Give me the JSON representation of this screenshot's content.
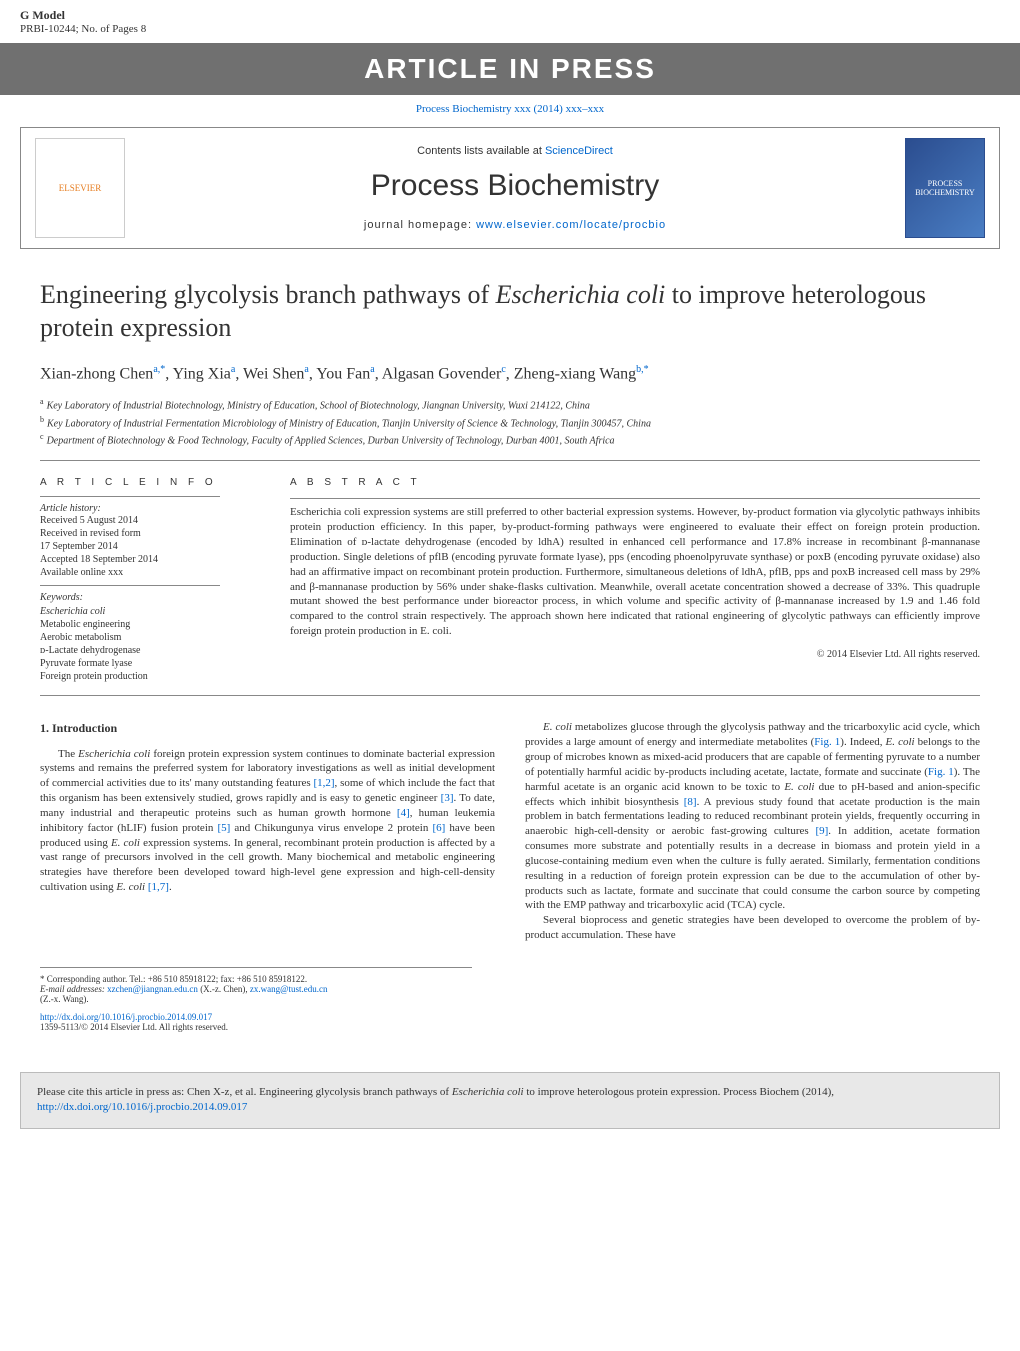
{
  "gmodel": {
    "line1": "G Model",
    "line2": "PRBI-10244;   No. of Pages 8"
  },
  "pressBanner": "ARTICLE IN PRESS",
  "journalRef": {
    "text": "Process Biochemistry xxx (2014) xxx–xxx"
  },
  "headerBox": {
    "elsevierLabel": "ELSEVIER",
    "contentsLine": "Contents lists available at ",
    "contentsLinkText": "ScienceDirect",
    "journalTitle": "Process Biochemistry",
    "homepageLabel": "journal homepage: ",
    "homepageLink": "www.elsevier.com/locate/procbio",
    "coverText": "PROCESS BIOCHEMISTRY"
  },
  "article": {
    "title": "Engineering glycolysis branch pathways of <i>Escherichia coli</i> to improve heterologous protein expression",
    "authorsHtml": "Xian-zhong Chen<span class='sup'>a,*</span>, Ying Xia<span class='sup'>a</span>, Wei Shen<span class='sup'>a</span>, You Fan<span class='sup'>a</span>, Algasan Govender<span class='sup'>c</span>, Zheng-xiang Wang<span class='sup'>b,*</span>",
    "affiliations": [
      {
        "sup": "a",
        "text": "Key Laboratory of Industrial Biotechnology, Ministry of Education, School of Biotechnology, Jiangnan University, Wuxi 214122, China"
      },
      {
        "sup": "b",
        "text": "Key Laboratory of Industrial Fermentation Microbiology of Ministry of Education, Tianjin University of Science & Technology, Tianjin 300457, China"
      },
      {
        "sup": "c",
        "text": "Department of Biotechnology & Food Technology, Faculty of Applied Sciences, Durban University of Technology, Durban 4001, South Africa"
      }
    ]
  },
  "info": {
    "heading": "a r t i c l e   i n f o",
    "historyLabel": "Article history:",
    "history": [
      "Received 5 August 2014",
      "Received in revised form",
      "17 September 2014",
      "Accepted 18 September 2014",
      "Available online xxx"
    ],
    "keywordsLabel": "Keywords:",
    "keywords": [
      "Escherichia coli",
      "Metabolic engineering",
      "Aerobic metabolism",
      "ᴅ-Lactate dehydrogenase",
      "Pyruvate formate lyase",
      "Foreign protein production"
    ]
  },
  "abstract": {
    "heading": "a b s t r a c t",
    "text": "Escherichia coli expression systems are still preferred to other bacterial expression systems. However, by-product formation via glycolytic pathways inhibits protein production efficiency. In this paper, by-product-forming pathways were engineered to evaluate their effect on foreign protein production. Elimination of ᴅ-lactate dehydrogenase (encoded by ldhA) resulted in enhanced cell performance and 17.8% increase in recombinant β-mannanase production. Single deletions of pflB (encoding pyruvate formate lyase), pps (encoding phoenolpyruvate synthase) or poxB (encoding pyruvate oxidase) also had an affirmative impact on recombinant protein production. Furthermore, simultaneous deletions of ldhA, pflB, pps and poxB increased cell mass by 29% and β-mannanase production by 56% under shake-flasks cultivation. Meanwhile, overall acetate concentration showed a decrease of 33%. This quadruple mutant showed the best performance under bioreactor process, in which volume and specific activity of β-mannanase increased by 1.9 and 1.46 fold compared to the control strain respectively. The approach shown here indicated that rational engineering of glycolytic pathways can efficiently improve foreign protein production in E. coli.",
    "copyright": "© 2014 Elsevier Ltd. All rights reserved."
  },
  "intro": {
    "heading": "1.  Introduction",
    "para1Html": "The <i>Escherichia coli</i> foreign protein expression system continues to dominate bacterial expression systems and remains the preferred system for laboratory investigations as well as initial development of commercial activities due to its' many outstanding features <span class='ref-link'>[1,2]</span>, some of which include the fact that this organism has been extensively studied, grows rapidly and is easy to genetic engineer <span class='ref-link'>[3]</span>. To date, many industrial and therapeutic proteins such as human growth hormone <span class='ref-link'>[4]</span>, human leukemia inhibitory factor (hLIF) fusion protein <span class='ref-link'>[5]</span> and Chikungunya virus envelope 2 protein <span class='ref-link'>[6]</span> have been produced using <i>E. coli</i> expression systems. In general, recombinant protein production is affected by a vast range of precursors involved in the cell growth. Many biochemical and metabolic engineering strategies have therefore been developed toward high-level gene expression and high-cell-density cultivation using <i>E. coli</i> <span class='ref-link'>[1,7]</span>.",
    "para2Html": "<i>E. coli</i> metabolizes glucose through the glycolysis pathway and the tricarboxylic acid cycle, which provides a large amount of energy and intermediate metabolites (<span class='fig-link'>Fig. 1</span>). Indeed, <i>E. coli</i> belongs to the group of microbes known as mixed-acid producers that are capable of fermenting pyruvate to a number of potentially harmful acidic by-products including acetate, lactate, formate and succinate (<span class='fig-link'>Fig. 1</span>). The harmful acetate is an organic acid known to be toxic to <i>E. coli</i> due to pH-based and anion-specific effects which inhibit biosynthesis <span class='ref-link'>[8]</span>. A previous study found that acetate production is the main problem in batch fermentations leading to reduced recombinant protein yields, frequently occurring in anaerobic high-cell-density or aerobic fast-growing cultures <span class='ref-link'>[9]</span>. In addition, acetate formation consumes more substrate and potentially results in a decrease in biomass and protein yield in a glucose-containing medium even when the culture is fully aerated. Similarly, fermentation conditions resulting in a reduction of foreign protein expression can be due to the accumulation of other by-products such as lactate, formate and succinate that could consume the carbon source by competing with the EMP pathway and tricarboxylic acid (TCA) cycle.",
    "para3Html": "Several bioprocess and genetic strategies have been developed to overcome the problem of by-product accumulation. These have"
  },
  "footnote": {
    "corrLine": "* Corresponding author. Tel.: +86 510 85918122; fax: +86 510 85918122.",
    "emailLabel": "E-mail addresses: ",
    "email1": "xzchen@jiangnan.edu.cn",
    "email1Name": " (X.-z. Chen), ",
    "email2": "zx.wang@tust.edu.cn",
    "email2Name": "(Z.-x. Wang)."
  },
  "doi": {
    "link": "http://dx.doi.org/10.1016/j.procbio.2014.09.017",
    "issn": "1359-5113/© 2014 Elsevier Ltd. All rights reserved."
  },
  "citationBox": {
    "textHtml": "Please cite this article in press as: Chen X-z, et al. Engineering glycolysis branch pathways of <i>Escherichia coli</i> to improve heterologous protein expression. Process Biochem (2014), ",
    "link": "http://dx.doi.org/10.1016/j.procbio.2014.09.017"
  },
  "colors": {
    "link": "#0066cc",
    "bannerBg": "#707070",
    "citationBg": "#e8e8e8"
  }
}
